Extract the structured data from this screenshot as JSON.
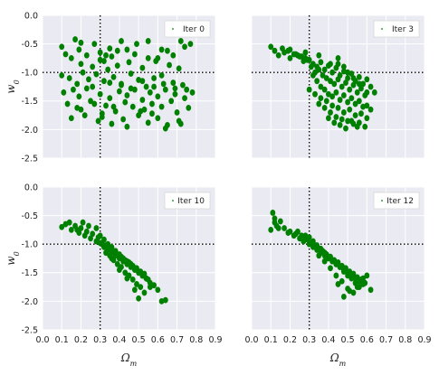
{
  "chart_data": [
    {
      "type": "scatter",
      "legend": "Iter 0",
      "legend_position": "top-right",
      "xlabel": "",
      "ylabel": "w0",
      "xlim": [
        0.0,
        0.9
      ],
      "ylim": [
        -2.5,
        0.0
      ],
      "xticks": [],
      "yticks": [
        "0.0",
        "-0.5",
        "-1.0",
        "-1.5",
        "-2.0",
        "-2.5"
      ],
      "reference": {
        "x": 0.3,
        "y": -1.0
      },
      "x": [
        0.1,
        0.17,
        0.12,
        0.15,
        0.19,
        0.2,
        0.23,
        0.27,
        0.3,
        0.32,
        0.35,
        0.36,
        0.41,
        0.44,
        0.49,
        0.55,
        0.6,
        0.65,
        0.72,
        0.77,
        0.2,
        0.26,
        0.3,
        0.34,
        0.39,
        0.45,
        0.52,
        0.59,
        0.66,
        0.71,
        0.1,
        0.14,
        0.21,
        0.24,
        0.28,
        0.32,
        0.37,
        0.41,
        0.46,
        0.5,
        0.54,
        0.58,
        0.62,
        0.68,
        0.73,
        0.11,
        0.16,
        0.19,
        0.23,
        0.3,
        0.35,
        0.4,
        0.44,
        0.48,
        0.52,
        0.56,
        0.6,
        0.64,
        0.69,
        0.74,
        0.78,
        0.13,
        0.18,
        0.25,
        0.33,
        0.38,
        0.43,
        0.47,
        0.53,
        0.57,
        0.62,
        0.67,
        0.7,
        0.76,
        0.15,
        0.22,
        0.29,
        0.31,
        0.36,
        0.42,
        0.5,
        0.55,
        0.6,
        0.65,
        0.71,
        0.18,
        0.26,
        0.35,
        0.41,
        0.46,
        0.52,
        0.58,
        0.63,
        0.69,
        0.75,
        0.2,
        0.27,
        0.31,
        0.37,
        0.44,
        0.51,
        0.57,
        0.64,
        0.72,
        0.33,
        0.39,
        0.48,
        0.55,
        0.62,
        0.68,
        0.74
      ],
      "y": [
        -0.55,
        -0.42,
        -0.68,
        -0.75,
        -0.6,
        -0.48,
        -0.7,
        -0.5,
        -0.65,
        -0.8,
        -0.58,
        -0.72,
        -0.45,
        -0.6,
        -0.5,
        -0.45,
        -0.75,
        -0.62,
        -0.45,
        -0.5,
        -0.85,
        -0.9,
        -0.78,
        -0.95,
        -0.88,
        -0.82,
        -0.92,
        -0.8,
        -0.87,
        -0.93,
        -1.05,
        -1.1,
        -1.0,
        -1.12,
        -1.03,
        -1.15,
        -1.08,
        -1.2,
        -1.02,
        -1.13,
        -1.25,
        -1.1,
        -1.05,
        -1.18,
        -1.22,
        -1.35,
        -1.3,
        -1.42,
        -1.28,
        -1.38,
        -1.45,
        -1.33,
        -1.4,
        -1.3,
        -1.48,
        -1.35,
        -1.42,
        -1.3,
        -1.38,
        -1.45,
        -1.35,
        -1.55,
        -1.62,
        -1.5,
        -1.58,
        -1.68,
        -1.52,
        -1.6,
        -1.65,
        -1.55,
        -1.6,
        -1.5,
        -1.7,
        -1.62,
        -1.8,
        -1.75,
        -1.85,
        -1.78,
        -1.9,
        -1.82,
        -1.75,
        -1.88,
        -1.8,
        -1.92,
        -1.85,
        -1.2,
        -1.25,
        -1.18,
        -1.22,
        -1.28,
        -1.15,
        -1.25,
        -1.2,
        -1.28,
        -1.3,
        -1.65,
        -1.55,
        -1.72,
        -1.6,
        -1.95,
        -1.68,
        -1.72,
        -1.98,
        -1.9,
        -0.7,
        -0.62,
        -0.68,
        -0.75,
        -0.6,
        -0.7,
        -0.55
      ]
    },
    {
      "type": "scatter",
      "legend": "Iter 3",
      "legend_position": "top-right",
      "xlabel": "",
      "ylabel": "",
      "xlim": [
        0.0,
        0.9
      ],
      "ylim": [
        -2.5,
        0.0
      ],
      "xticks": [],
      "yticks": [],
      "reference": {
        "x": 0.3,
        "y": -1.0
      },
      "x": [
        0.1,
        0.12,
        0.14,
        0.17,
        0.2,
        0.22,
        0.25,
        0.27,
        0.3,
        0.32,
        0.34,
        0.36,
        0.38,
        0.4,
        0.42,
        0.44,
        0.46,
        0.48,
        0.5,
        0.52,
        0.54,
        0.56,
        0.58,
        0.6,
        0.62,
        0.64,
        0.2,
        0.24,
        0.28,
        0.31,
        0.33,
        0.35,
        0.37,
        0.39,
        0.41,
        0.43,
        0.45,
        0.47,
        0.49,
        0.51,
        0.53,
        0.55,
        0.57,
        0.59,
        0.26,
        0.29,
        0.32,
        0.34,
        0.36,
        0.38,
        0.4,
        0.42,
        0.44,
        0.46,
        0.48,
        0.5,
        0.52,
        0.54,
        0.56,
        0.58,
        0.6,
        0.62,
        0.3,
        0.33,
        0.36,
        0.39,
        0.42,
        0.45,
        0.48,
        0.51,
        0.54,
        0.57,
        0.6,
        0.35,
        0.38,
        0.41,
        0.44,
        0.47,
        0.5,
        0.53,
        0.56,
        0.59,
        0.4,
        0.43,
        0.46,
        0.49,
        0.52,
        0.55,
        0.45,
        0.48,
        0.5,
        0.53,
        0.56,
        0.6,
        0.16,
        0.19,
        0.23,
        0.28,
        0.35,
        0.41,
        0.45
      ],
      "y": [
        -0.55,
        -0.62,
        -0.7,
        -0.65,
        -0.75,
        -0.68,
        -0.72,
        -0.8,
        -0.78,
        -0.85,
        -0.9,
        -0.82,
        -0.95,
        -0.88,
        -1.0,
        -0.92,
        -1.05,
        -0.98,
        -1.1,
        -1.02,
        -1.15,
        -1.08,
        -1.2,
        -1.12,
        -1.25,
        -1.35,
        -0.6,
        -0.7,
        -0.65,
        -0.9,
        -1.0,
        -0.95,
        -1.05,
        -1.1,
        -1.15,
        -1.2,
        -1.12,
        -1.25,
        -1.18,
        -1.3,
        -1.22,
        -1.35,
        -1.28,
        -1.4,
        -0.72,
        -0.78,
        -1.05,
        -1.15,
        -1.25,
        -1.3,
        -1.38,
        -1.42,
        -1.35,
        -1.48,
        -1.4,
        -1.52,
        -1.45,
        -1.55,
        -1.5,
        -1.6,
        -1.58,
        -1.65,
        -1.3,
        -1.38,
        -1.45,
        -1.5,
        -1.58,
        -1.62,
        -1.7,
        -1.65,
        -1.75,
        -1.72,
        -1.8,
        -1.55,
        -1.62,
        -1.7,
        -1.78,
        -1.82,
        -1.85,
        -1.9,
        -1.88,
        -1.95,
        -1.8,
        -1.88,
        -1.92,
        -1.98,
        -1.85,
        -1.95,
        -0.85,
        -0.9,
        -1.0,
        -1.1,
        -1.2,
        -1.35,
        -0.58,
        -0.62,
        -0.68,
        -0.75,
        -0.7,
        -0.85,
        -0.75
      ]
    },
    {
      "type": "scatter",
      "legend": "Iter 10",
      "legend_position": "top-right",
      "xlabel": "Ωm",
      "ylabel": "w0",
      "xlim": [
        0.0,
        0.9
      ],
      "ylim": [
        -2.5,
        0.0
      ],
      "xticks": [
        "0.0",
        "0.1",
        "0.2",
        "0.3",
        "0.4",
        "0.5",
        "0.6",
        "0.7",
        "0.8",
        "0.9"
      ],
      "yticks": [
        "0.0",
        "-0.5",
        "-1.0",
        "-1.5",
        "-2.0",
        "-2.5"
      ],
      "reference": {
        "x": 0.3,
        "y": -1.0
      },
      "x": [
        0.1,
        0.12,
        0.14,
        0.15,
        0.17,
        0.19,
        0.2,
        0.22,
        0.23,
        0.25,
        0.26,
        0.28,
        0.29,
        0.3,
        0.31,
        0.32,
        0.33,
        0.34,
        0.35,
        0.36,
        0.37,
        0.38,
        0.39,
        0.4,
        0.41,
        0.42,
        0.43,
        0.44,
        0.45,
        0.46,
        0.47,
        0.48,
        0.49,
        0.5,
        0.51,
        0.52,
        0.53,
        0.54,
        0.55,
        0.56,
        0.58,
        0.6,
        0.62,
        0.64,
        0.3,
        0.32,
        0.34,
        0.36,
        0.38,
        0.4,
        0.42,
        0.44,
        0.46,
        0.48,
        0.5,
        0.52,
        0.54,
        0.33,
        0.35,
        0.37,
        0.39,
        0.41,
        0.43,
        0.45,
        0.47,
        0.49,
        0.51,
        0.36,
        0.4,
        0.44,
        0.48,
        0.5,
        0.53,
        0.56,
        0.28,
        0.24,
        0.21,
        0.18
      ],
      "y": [
        -0.7,
        -0.65,
        -0.62,
        -0.75,
        -0.68,
        -0.8,
        -0.72,
        -0.85,
        -0.78,
        -0.9,
        -0.82,
        -0.95,
        -0.88,
        -0.98,
        -1.0,
        -1.05,
        -1.02,
        -1.1,
        -1.08,
        -1.15,
        -1.12,
        -1.2,
        -1.18,
        -1.25,
        -1.22,
        -1.3,
        -1.28,
        -1.35,
        -1.32,
        -1.4,
        -1.38,
        -1.45,
        -1.42,
        -1.5,
        -1.48,
        -1.55,
        -1.52,
        -1.6,
        -1.62,
        -1.68,
        -1.72,
        -1.8,
        -2.0,
        -1.98,
        -0.85,
        -0.92,
        -1.0,
        -1.05,
        -1.12,
        -1.18,
        -1.25,
        -1.3,
        -1.35,
        -1.42,
        -1.48,
        -1.55,
        -1.6,
        -1.15,
        -1.2,
        -1.28,
        -1.35,
        -1.4,
        -1.5,
        -1.55,
        -1.62,
        -1.7,
        -1.75,
        -1.25,
        -1.45,
        -1.6,
        -1.8,
        -1.95,
        -1.85,
        -1.75,
        -0.72,
        -0.68,
        -0.62,
        -0.75
      ]
    },
    {
      "type": "scatter",
      "legend": "Iter 12",
      "legend_position": "top-right",
      "xlabel": "Ωm",
      "ylabel": "",
      "xlim": [
        0.0,
        0.9
      ],
      "ylim": [
        -2.5,
        0.0
      ],
      "xticks": [
        "0.0",
        "0.1",
        "0.2",
        "0.3",
        "0.4",
        "0.5",
        "0.6",
        "0.7",
        "0.8",
        "0.9"
      ],
      "yticks": [],
      "reference": {
        "x": 0.3,
        "y": -1.0
      },
      "x": [
        0.1,
        0.11,
        0.12,
        0.13,
        0.15,
        0.17,
        0.19,
        0.2,
        0.22,
        0.23,
        0.25,
        0.26,
        0.27,
        0.28,
        0.29,
        0.3,
        0.31,
        0.32,
        0.33,
        0.34,
        0.35,
        0.36,
        0.37,
        0.38,
        0.39,
        0.4,
        0.41,
        0.42,
        0.43,
        0.44,
        0.45,
        0.46,
        0.47,
        0.48,
        0.49,
        0.5,
        0.51,
        0.52,
        0.53,
        0.54,
        0.55,
        0.56,
        0.57,
        0.58,
        0.59,
        0.6,
        0.62,
        0.3,
        0.32,
        0.34,
        0.36,
        0.38,
        0.4,
        0.42,
        0.44,
        0.46,
        0.48,
        0.5,
        0.52,
        0.54,
        0.56,
        0.35,
        0.38,
        0.41,
        0.44,
        0.47,
        0.5,
        0.53,
        0.45,
        0.48,
        0.51,
        0.55,
        0.58,
        0.12,
        0.14,
        0.24,
        0.28
      ],
      "y": [
        -0.75,
        -0.45,
        -0.55,
        -0.68,
        -0.6,
        -0.72,
        -0.8,
        -0.78,
        -0.85,
        -0.82,
        -0.9,
        -0.85,
        -0.95,
        -0.88,
        -0.92,
        -1.0,
        -0.98,
        -1.05,
        -1.02,
        -1.1,
        -1.08,
        -1.15,
        -1.12,
        -1.2,
        -1.18,
        -1.25,
        -1.22,
        -1.3,
        -1.28,
        -1.35,
        -1.32,
        -1.4,
        -1.38,
        -1.45,
        -1.42,
        -1.5,
        -1.48,
        -1.55,
        -1.52,
        -1.6,
        -1.58,
        -1.65,
        -1.62,
        -1.7,
        -1.68,
        -1.55,
        -1.8,
        -0.88,
        -0.95,
        -1.02,
        -1.08,
        -1.15,
        -1.22,
        -1.28,
        -1.35,
        -1.4,
        -1.48,
        -1.55,
        -1.6,
        -1.68,
        -1.75,
        -1.2,
        -1.3,
        -1.42,
        -1.55,
        -1.65,
        -1.78,
        -1.85,
        -1.7,
        -1.92,
        -1.82,
        -1.75,
        -1.6,
        -0.62,
        -0.72,
        -0.78,
        -0.85
      ]
    }
  ],
  "colors": {
    "background": "#eaeaf2",
    "grid": "#ffffff",
    "marker": "#008000",
    "reference_line": "#000000"
  }
}
